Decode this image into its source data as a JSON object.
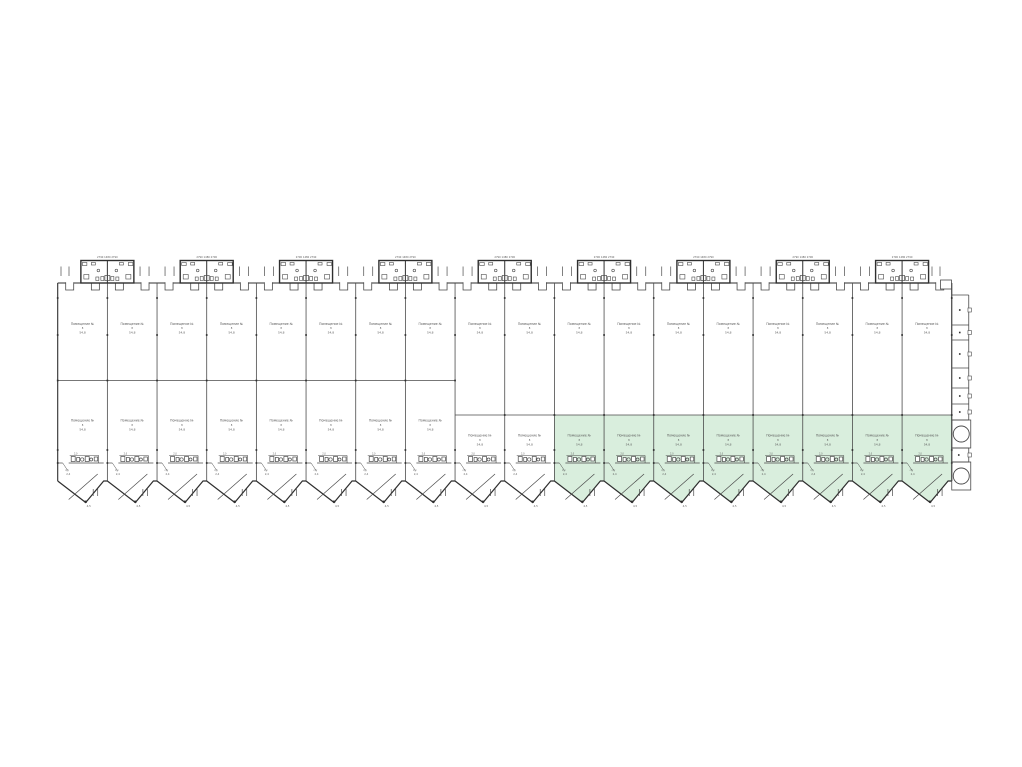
{
  "plan": {
    "type": "floor-plan",
    "units": {
      "count": 18,
      "highlighted_start": 11,
      "highlighted_end": 18,
      "entrance_blocks": 9
    },
    "colors": {
      "background": "#ffffff",
      "line": "#4a4a4a",
      "wall": "#2f2f2f",
      "text": "#5a5a5a",
      "highlight": "#d9eedd"
    },
    "labels": {
      "room": [
        "Помещение №",
        "8",
        "54,8"
      ],
      "utility": [
        "с/у",
        "2,4"
      ],
      "fixture_dim": "2,0",
      "ramp": "4,5",
      "entrance_dims": "2790 1480 2790"
    }
  }
}
